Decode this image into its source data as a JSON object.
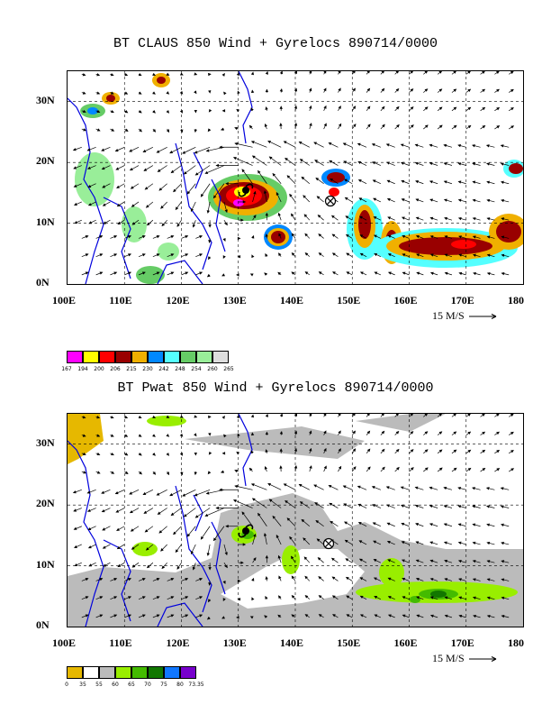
{
  "panel1": {
    "title": "BT CLAUS 850 Wind + Gyrelocs 890714/0000",
    "legend": {
      "colors": [
        "#ff00ff",
        "#ffff00",
        "#ff0000",
        "#990000",
        "#f0b000",
        "#0088ff",
        "#55ffff",
        "#66cc66",
        "#99ee99",
        "#dddddd"
      ],
      "labels": [
        "167",
        "194",
        "200",
        "206",
        "215",
        "230",
        "242",
        "248",
        "254",
        "260",
        "265"
      ]
    }
  },
  "panel2": {
    "title": "BT Pwat 850 Wind + Gyrelocs 890714/0000",
    "legend": {
      "colors": [
        "#e6b800",
        "#ffffff",
        "#bbbbbb",
        "#99ee00",
        "#44bb00",
        "#117700",
        "#1177ff",
        "#7700cc"
      ],
      "labels": [
        "0",
        "35",
        "55",
        "60",
        "65",
        "70",
        "75",
        "80",
        "73.35"
      ]
    }
  },
  "axes": {
    "lon_labels": [
      "100E",
      "110E",
      "120E",
      "130E",
      "140E",
      "150E",
      "160E",
      "170E",
      "180"
    ],
    "lat_labels": [
      "30N",
      "20N",
      "10N",
      "0N"
    ],
    "lon_range": [
      100,
      180
    ],
    "lat_range": [
      0,
      35
    ],
    "reference_vector_label": "15 M/S"
  },
  "symbols": {
    "cyclone_icon": "tropical-cyclone-icon",
    "gyre_icon": "circled-x-icon"
  },
  "colors": {
    "coastline": "#0000dd"
  }
}
